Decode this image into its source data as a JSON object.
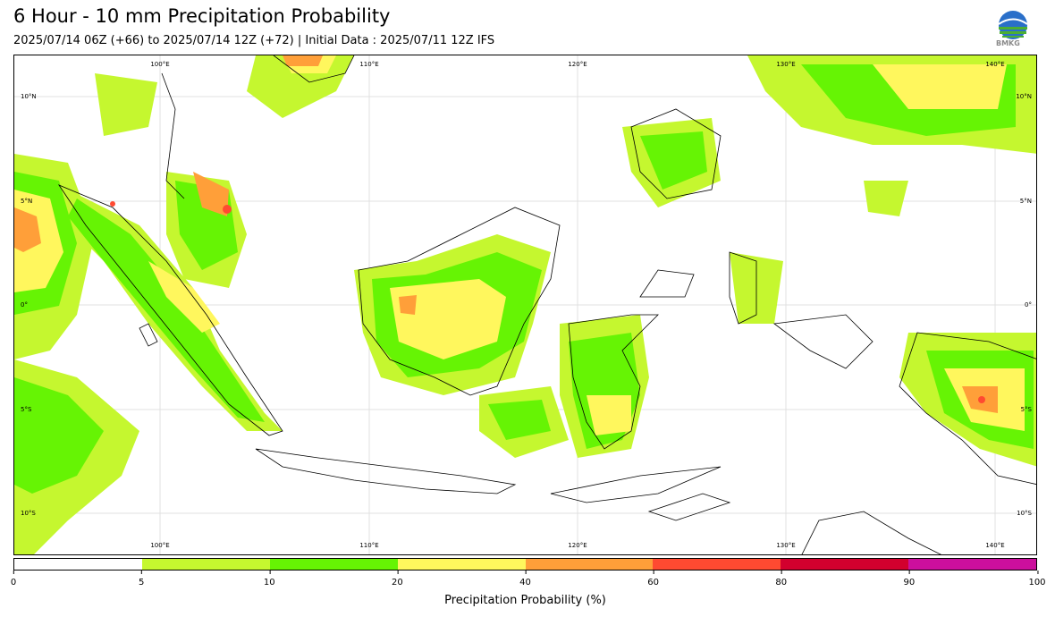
{
  "header": {
    "title": "6 Hour - 10 mm Precipitation Probability",
    "subtitle": "2025/07/14 06Z (+66) to 2025/07/14 12Z (+72) | Initial Data : 2025/07/11 12Z IFS",
    "logo_text": "BMKG"
  },
  "map": {
    "lon_labels": [
      "100°E",
      "110°E",
      "120°E",
      "130°E",
      "140°E"
    ],
    "lat_labels": [
      "10°N",
      "5°N",
      "0°",
      "5°S",
      "10°S"
    ],
    "land_outline_color": "#000000",
    "grid": true
  },
  "colorbar": {
    "label": "Precipitation Probability (%)",
    "ticks": [
      "0",
      "5",
      "10",
      "20",
      "40",
      "60",
      "80",
      "90",
      "100"
    ],
    "colors": [
      "#ffffff",
      "#c5f72f",
      "#66f404",
      "#fff75d",
      "#ff9f39",
      "#ff4a31",
      "#d2002e",
      "#cc0f9d"
    ]
  }
}
